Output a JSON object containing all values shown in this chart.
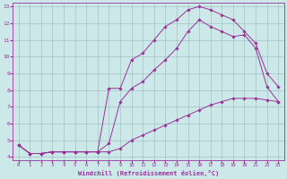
{
  "xlabel": "Windchill (Refroidissement éolien,°C)",
  "bg_color": "#cce8e8",
  "line_color": "#993399",
  "grid_color": "#99bbbb",
  "xlim": [
    -0.5,
    23.5
  ],
  "ylim": [
    3.8,
    13.2
  ],
  "xticks": [
    0,
    1,
    2,
    3,
    4,
    5,
    6,
    7,
    8,
    9,
    10,
    11,
    12,
    13,
    14,
    15,
    16,
    17,
    18,
    19,
    20,
    21,
    22,
    23
  ],
  "yticks": [
    4,
    5,
    6,
    7,
    8,
    9,
    10,
    11,
    12,
    13
  ],
  "series1_x": [
    0,
    1,
    2,
    3,
    4,
    5,
    6,
    7,
    8,
    9,
    10,
    11,
    12,
    13,
    14,
    15,
    16,
    17,
    18,
    19,
    20,
    21,
    22,
    23
  ],
  "series1_y": [
    4.7,
    4.2,
    4.2,
    4.3,
    4.3,
    4.3,
    4.3,
    4.3,
    4.3,
    4.5,
    5.0,
    5.3,
    5.6,
    5.9,
    6.2,
    6.5,
    6.8,
    7.1,
    7.3,
    7.5,
    7.5,
    7.5,
    7.4,
    7.3
  ],
  "series2_x": [
    0,
    1,
    2,
    3,
    4,
    5,
    6,
    7,
    8,
    9,
    10,
    11,
    12,
    13,
    14,
    15,
    16,
    17,
    18,
    19,
    20,
    21,
    22,
    23
  ],
  "series2_y": [
    4.7,
    4.2,
    4.2,
    4.3,
    4.3,
    4.3,
    4.3,
    4.3,
    4.8,
    7.3,
    8.1,
    8.5,
    9.2,
    9.8,
    10.5,
    11.5,
    12.2,
    11.8,
    11.5,
    11.2,
    11.3,
    10.5,
    8.2,
    7.3
  ],
  "series3_x": [
    0,
    1,
    2,
    3,
    4,
    5,
    6,
    7,
    8,
    9,
    10,
    11,
    12,
    13,
    14,
    15,
    16,
    17,
    18,
    19,
    20,
    21,
    22,
    23
  ],
  "series3_y": [
    4.7,
    4.2,
    4.2,
    4.3,
    4.3,
    4.3,
    4.3,
    4.3,
    8.1,
    8.1,
    9.8,
    10.2,
    11.0,
    11.8,
    12.2,
    12.8,
    13.0,
    12.8,
    12.5,
    12.2,
    11.5,
    10.8,
    9.0,
    8.2
  ]
}
